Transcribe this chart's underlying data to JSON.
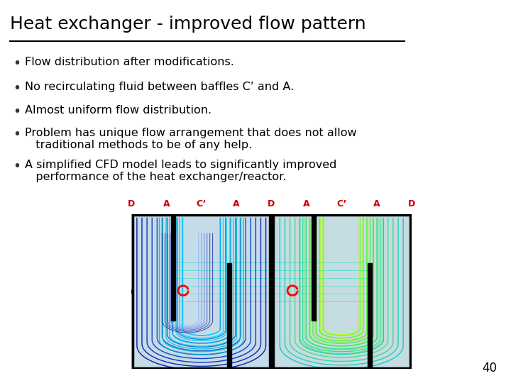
{
  "title": "Heat exchanger - improved flow pattern",
  "title_fontsize": 18,
  "title_color": "#000000",
  "background_color": "#ffffff",
  "bullet_color": "#333333",
  "bullet_text_color": "#000000",
  "bullet_fontsize": 11.5,
  "bullets": [
    "Flow distribution after modifications.",
    "No recirculating fluid between baffles C’ and A.",
    "Almost uniform flow distribution.",
    "Problem has unique flow arrangement that does not allow\n   traditional methods to be of any help.",
    "A simplified CFD model leads to significantly improved\n   performance of the heat exchanger/reactor."
  ],
  "page_number": "40",
  "label_color": "#cc0000",
  "labels": [
    "D",
    "A",
    "C’",
    "A",
    "D",
    "A",
    "C’",
    "A",
    "D"
  ]
}
